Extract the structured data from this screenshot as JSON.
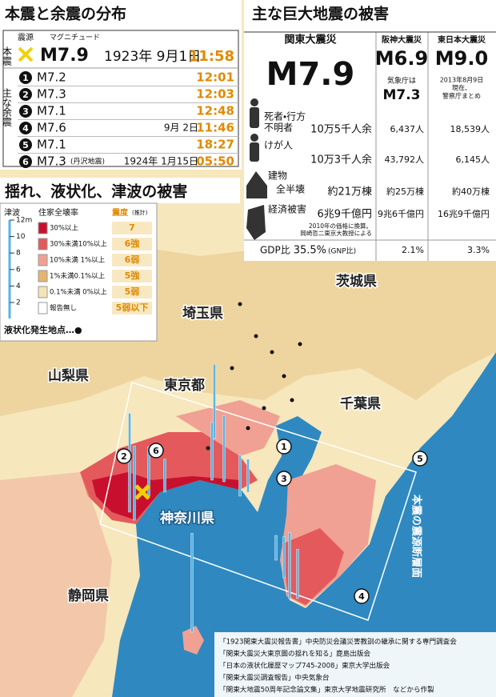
{
  "aftershock_panel": {
    "title": "本震と余震の分布",
    "header": {
      "epicenter": "震源",
      "magnitude": "マグニチュード"
    },
    "mainshock": {
      "label": "本震",
      "magnitude": "M7.9",
      "date": "1923年 9月1日",
      "time": "11:58"
    },
    "aftershock_label": "主な余震",
    "aftershocks": [
      {
        "number": "1",
        "magnitude": "M7.2",
        "time": "12:01"
      },
      {
        "number": "2",
        "magnitude": "M7.3",
        "time": "12:03"
      },
      {
        "number": "3",
        "magnitude": "M7.1",
        "time": "12:48"
      },
      {
        "number": "4",
        "magnitude": "M7.6",
        "date": "9月 2日",
        "time": "11:46"
      },
      {
        "number": "5",
        "magnitude": "M7.1",
        "time": "18:27"
      },
      {
        "number": "6",
        "magnitude": "M7.3",
        "note": "(丹沢地震)",
        "date": "1924年 1月15日",
        "time": "05:50"
      }
    ]
  },
  "damage_table": {
    "title": "主な巨大地震の被害",
    "columns": [
      {
        "name": "関東大震災",
        "magnitude": "M7.9"
      },
      {
        "name": "阪神大震災",
        "magnitude": "M6.9",
        "note": "気象庁は",
        "alt_magnitude": "M7.3"
      },
      {
        "name": "東日本大震災",
        "magnitude": "M9.0",
        "note_lines": [
          "2013年8月9日",
          "現在、",
          "警察庁まとめ"
        ]
      }
    ],
    "rows": [
      {
        "label_lines": [
          "死者・行方",
          "不明者"
        ],
        "values": [
          "10万5千人余",
          "6,437人",
          "18,539人"
        ]
      },
      {
        "label_lines": [
          "けが人"
        ],
        "values": [
          "10万3千人余",
          "43,792人",
          "6,145人"
        ]
      },
      {
        "label_lines": [
          "建物",
          "全半壊"
        ],
        "values": [
          "約21万棟",
          "約25万棟",
          "約40万棟"
        ]
      },
      {
        "label_lines": [
          "経済被害"
        ],
        "values": [
          "6兆9千億円",
          "9兆6千億円",
          "16兆9千億円"
        ],
        "note_lines": [
          "2010年の価格に換算。",
          "岡崎哲二東京大教授による"
        ]
      },
      {
        "label_lines": [
          "GDP比"
        ],
        "values": [
          "35.5%",
          "2.1%",
          "3.3%"
        ],
        "first_note": "(GNP比)"
      }
    ]
  },
  "map": {
    "title": "揺れ、液状化、津波の被害",
    "legend": {
      "tsunami_label": "津波",
      "tsunami_scale": [
        "12m",
        "10",
        "8",
        "6",
        "4",
        "2"
      ],
      "collapse_label": "住家全壊率",
      "collapse_rates": [
        {
          "label": "30%以上",
          "color": "#c8102e"
        },
        {
          "label": "30%未満10%以上",
          "color": "#e4595b"
        },
        {
          "label": "10%未満 1%以上",
          "color": "#f0a193"
        },
        {
          "label": "1%未満0.1%以上",
          "color": "#e3b56f"
        },
        {
          "label": "0.1%未満 0%以上",
          "color": "#f5e4b4"
        },
        {
          "label": "報告無し",
          "color": "#ffffff"
        }
      ],
      "intensity_label": "震度",
      "intensity_note": "(推計)",
      "intensities": [
        "7",
        "6強",
        "6弱",
        "5強",
        "5弱",
        "5弱以下"
      ],
      "liquefaction": "液状化発生地点…●"
    },
    "prefectures": [
      "茨城県",
      "埼玉県",
      "東京都",
      "山梨県",
      "千葉県",
      "神奈川県",
      "静岡県"
    ],
    "fault_label": "本震の震源断層面",
    "markers": [
      "1",
      "2",
      "3",
      "4",
      "5",
      "6"
    ],
    "tsunami_heights_m": [
      12,
      9,
      6,
      4,
      12,
      7,
      8,
      5,
      4,
      3,
      5,
      8,
      6,
      9
    ],
    "sources": [
      "「1923関東大震災報告書」中央防災会議災害教訓の継承に関する専門調査会",
      "「関東大震災大東京圏の揺れを知る」鹿島出版会",
      "「日本の液状化履歴マップ745-2008」東京大学出版会",
      "「関東大震災調査報告」中央気象台",
      "「関東大地震50周年記念論文集」東京大学地震研究所　などから作製"
    ]
  }
}
